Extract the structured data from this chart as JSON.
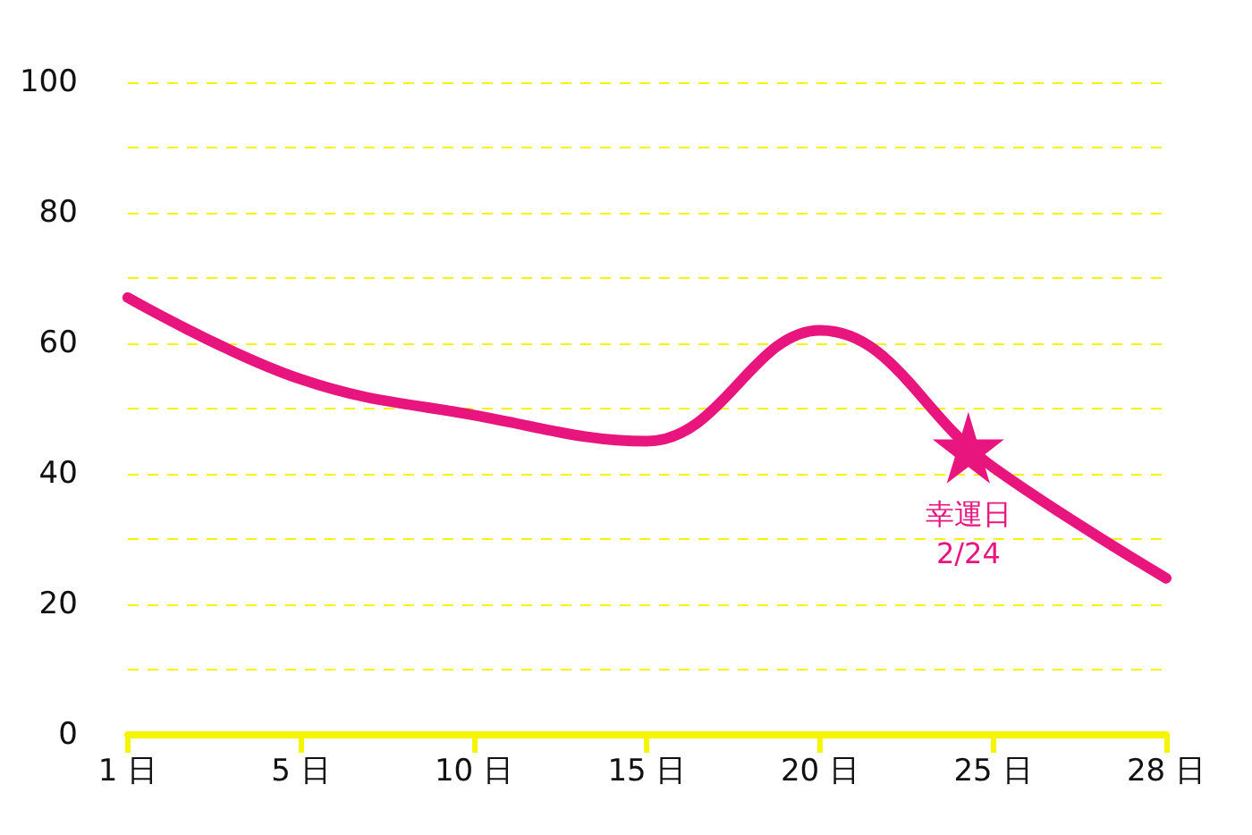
{
  "chart_data": {
    "type": "line",
    "categories": [
      "1 日",
      "5 日",
      "10 日",
      "15 日",
      "20 日",
      "25 日",
      "28 日"
    ],
    "series": [
      {
        "color": "#e8157f",
        "values": [
          67,
          54.5,
          49,
          45,
          62,
          41,
          24
        ]
      }
    ],
    "ylim": [
      0,
      100
    ],
    "yticks": [
      0,
      {
        "value": 10,
        "label": null
      },
      20,
      {
        "value": 30,
        "label": null
      },
      40,
      {
        "value": 50,
        "label": null
      },
      60,
      {
        "value": 70,
        "label": null
      },
      80,
      {
        "value": 90,
        "label": null
      },
      100
    ],
    "grid": "y",
    "line_style": "solid",
    "marker": "none",
    "annotations": [
      {
        "text": "幸運日\n2/24",
        "y": 44
      }
    ]
  }
}
